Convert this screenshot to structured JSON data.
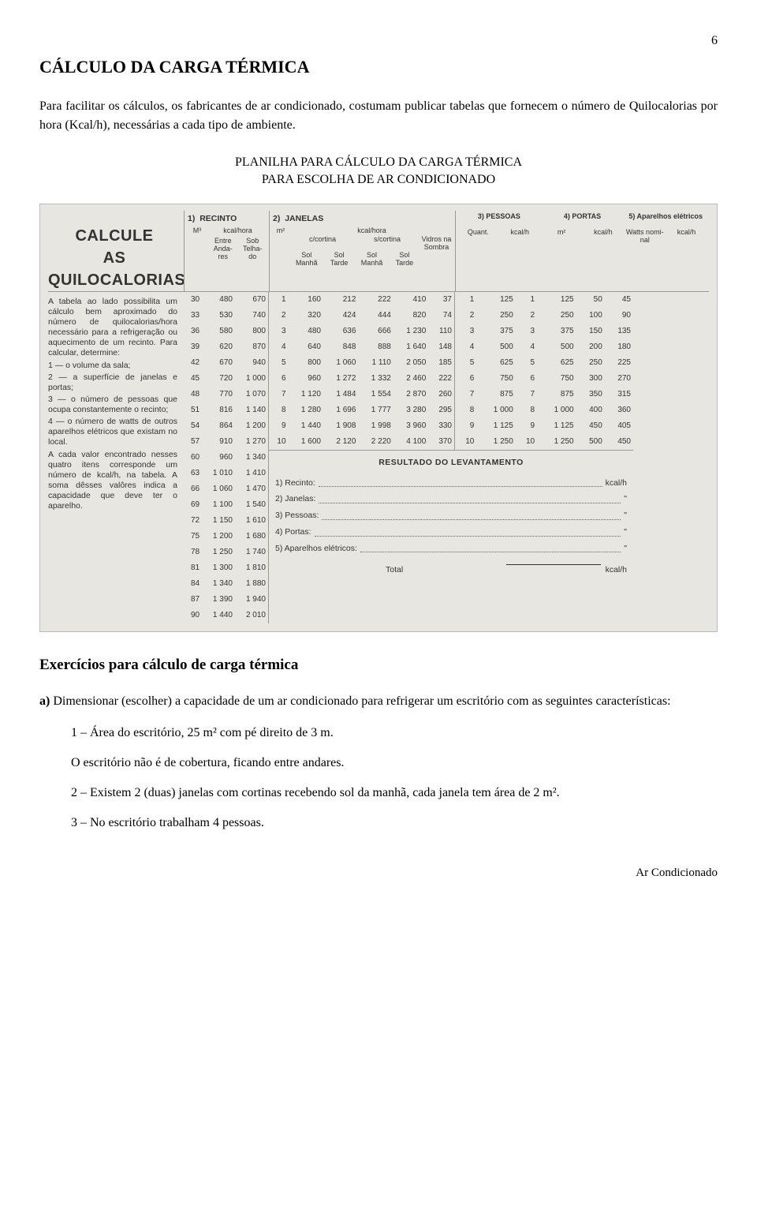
{
  "page_number": "6",
  "title": "CÁLCULO DA CARGA TÉRMICA",
  "intro_paragraph": "Para facilitar os cálculos, os fabricantes de ar condicionado, costumam publicar tabelas que fornecem o número de Quilocalorias por hora (Kcal/h), necessárias a cada tipo de ambiente.",
  "subtitle_line1": "PLANILHA PARA CÁLCULO DA CARGA TÉRMICA",
  "subtitle_line2": "PARA ESCOLHA DE AR CONDICIONADO",
  "scan": {
    "big_title_l1": "CALCULE",
    "big_title_l2": "AS",
    "big_title_l3": "QUILOCALORIAS",
    "left_text": "A tabela ao lado possibilita um cálculo bem aproximado do número de quilocalorias/hora necessário para a refrigeração ou aquecimento de um recinto. Para calcular, determine:\n1 — o volume da sala;\n2 — a superfície de janelas e portas;\n3 — o número de pessoas que ocupa constantemente o recinto;\n4 — o número de watts de outros aparelhos elétricos que existam no local.\nA cada valor encontrado nesses quatro itens corresponde um número de kcal/h, na tabela. A soma dêsses valôres indica a capacidade que deve ter o aparelho.",
    "headers": {
      "g1": {
        "num": "1)",
        "label": "RECINTO",
        "unit_l": "M³",
        "unit_r": "kcal/hora",
        "c1": "Entre Anda-res",
        "c2": "Sob Telha-do"
      },
      "g2": {
        "num": "2)",
        "label": "JANELAS",
        "unit_l": "m²",
        "unit_r": "kcal/hora",
        "c1": "c/cortina",
        "c2": "s/cortina",
        "c3": "Vidros na Sombra",
        "sc1": "Sol Manhã",
        "sc2": "Sol Tarde",
        "sc3": "Sol Manhã",
        "sc4": "Sol Tarde"
      },
      "g3": {
        "num": "3)",
        "label": "PESSOAS",
        "c1": "Quant.",
        "c2": "kcal/h"
      },
      "g4": {
        "num": "4)",
        "label": "PORTAS",
        "c1": "m²",
        "c2": "kcal/h"
      },
      "g5": {
        "num": "5)",
        "label": "Aparelhos elétricos",
        "c1": "Watts nomi-nal",
        "c2": "kcal/h"
      }
    },
    "tableA": [
      [
        "30",
        "480",
        "670"
      ],
      [
        "33",
        "530",
        "740"
      ],
      [
        "36",
        "580",
        "800"
      ],
      [
        "39",
        "620",
        "870"
      ],
      [
        "42",
        "670",
        "940"
      ],
      [
        "45",
        "720",
        "1 000"
      ],
      [
        "48",
        "770",
        "1 070"
      ],
      [
        "51",
        "816",
        "1 140"
      ],
      [
        "54",
        "864",
        "1 200"
      ],
      [
        "57",
        "910",
        "1 270"
      ],
      [
        "60",
        "960",
        "1 340"
      ],
      [
        "63",
        "1 010",
        "1 410"
      ],
      [
        "66",
        "1 060",
        "1 470"
      ],
      [
        "69",
        "1 100",
        "1 540"
      ],
      [
        "72",
        "1 150",
        "1 610"
      ],
      [
        "75",
        "1 200",
        "1 680"
      ],
      [
        "78",
        "1 250",
        "1 740"
      ],
      [
        "81",
        "1 300",
        "1 810"
      ],
      [
        "84",
        "1 340",
        "1 880"
      ],
      [
        "87",
        "1 390",
        "1 940"
      ],
      [
        "90",
        "1 440",
        "2 010"
      ]
    ],
    "tableB": [
      [
        "1",
        "160",
        "212",
        "222",
        "410",
        "37"
      ],
      [
        "2",
        "320",
        "424",
        "444",
        "820",
        "74"
      ],
      [
        "3",
        "480",
        "636",
        "666",
        "1 230",
        "110"
      ],
      [
        "4",
        "640",
        "848",
        "888",
        "1 640",
        "148"
      ],
      [
        "5",
        "800",
        "1 060",
        "1 110",
        "2 050",
        "185"
      ],
      [
        "6",
        "960",
        "1 272",
        "1 332",
        "2 460",
        "222"
      ],
      [
        "7",
        "1 120",
        "1 484",
        "1 554",
        "2 870",
        "260"
      ],
      [
        "8",
        "1 280",
        "1 696",
        "1 777",
        "3 280",
        "295"
      ],
      [
        "9",
        "1 440",
        "1 908",
        "1 998",
        "3 960",
        "330"
      ],
      [
        "10",
        "1 600",
        "2 120",
        "2 220",
        "4 100",
        "370"
      ]
    ],
    "tableC": [
      [
        "1",
        "125",
        "1",
        "125",
        "50",
        "45"
      ],
      [
        "2",
        "250",
        "2",
        "250",
        "100",
        "90"
      ],
      [
        "3",
        "375",
        "3",
        "375",
        "150",
        "135"
      ],
      [
        "4",
        "500",
        "4",
        "500",
        "200",
        "180"
      ],
      [
        "5",
        "625",
        "5",
        "625",
        "250",
        "225"
      ],
      [
        "6",
        "750",
        "6",
        "750",
        "300",
        "270"
      ],
      [
        "7",
        "875",
        "7",
        "875",
        "350",
        "315"
      ],
      [
        "8",
        "1 000",
        "8",
        "1 000",
        "400",
        "360"
      ],
      [
        "9",
        "1 125",
        "9",
        "1 125",
        "450",
        "405"
      ],
      [
        "10",
        "1 250",
        "10",
        "1 250",
        "500",
        "450"
      ]
    ],
    "result": {
      "title": "RESULTADO DO LEVANTAMENTO",
      "lines": [
        {
          "n": "1)",
          "label": "Recinto:",
          "unit": "kcal/h"
        },
        {
          "n": "2)",
          "label": "Janelas:",
          "unit": "\""
        },
        {
          "n": "3)",
          "label": "Pessoas:",
          "unit": "\""
        },
        {
          "n": "4)",
          "label": "Portas:",
          "unit": "\""
        },
        {
          "n": "5)",
          "label": "Aparelhos elétricos:",
          "unit": "\""
        }
      ],
      "total_label": "Total",
      "total_unit": "kcal/h"
    }
  },
  "exercises_heading": "Exercícios para cálculo de carga térmica",
  "ex_a_label": "a)",
  "ex_a_text": " Dimensionar (escolher) a capacidade de um ar condicionado para refrigerar um escritório com as seguintes características:",
  "ex_items": [
    "1 – Área do escritório, 25 m² com pé direito de 3 m.",
    "O escritório não é de cobertura, ficando entre andares.",
    "2 – Existem 2 (duas) janelas com cortinas recebendo sol da manhã, cada janela tem área de 2 m².",
    "3 – No escritório trabalham 4 pessoas."
  ],
  "footer": "Ar Condicionado",
  "colors": {
    "scan_bg": "#e8e6e0",
    "border": "#999999"
  }
}
